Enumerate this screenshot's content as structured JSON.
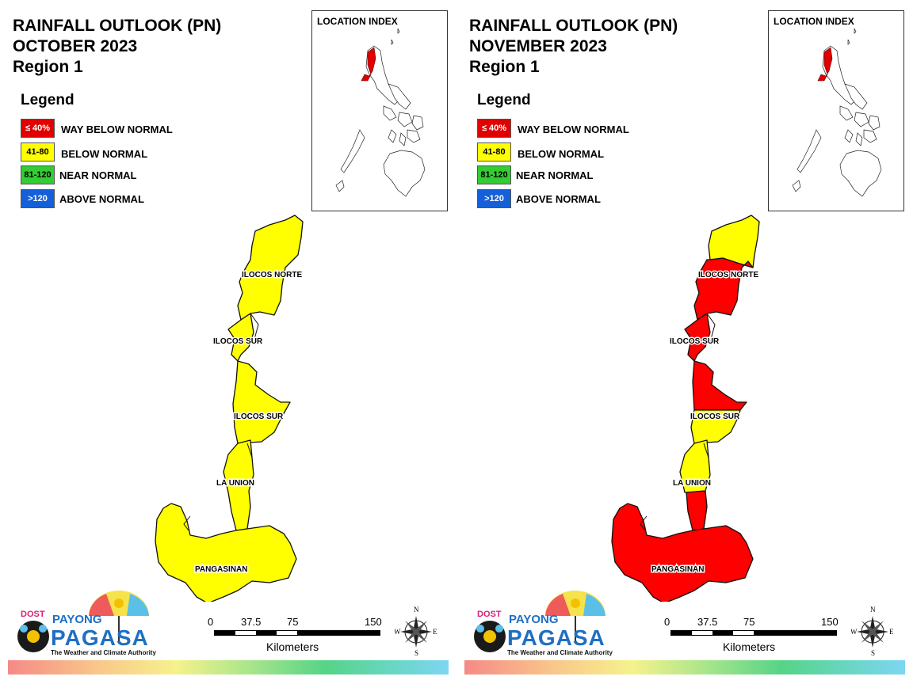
{
  "panels": [
    {
      "title_line1": "RAINFALL OUTLOOK (PN)",
      "title_line2": "OCTOBER 2023",
      "title_line3": "Region 1",
      "region_fill": "#ffff00",
      "province_fills": {
        "ilocos_norte_north": "#ffff00",
        "ilocos_norte_south": "#ffff00",
        "ilocos_sur_north": "#ffff00",
        "ilocos_sur_south": "#ffff00",
        "la_union_north": "#ffff00",
        "la_union_south": "#ffff00",
        "pangasinan": "#ffff00"
      }
    },
    {
      "title_line1": "RAINFALL OUTLOOK (PN)",
      "title_line2": "NOVEMBER 2023",
      "title_line3": "Region 1",
      "region_fill": "#ff0000",
      "province_fills": {
        "ilocos_norte_north": "#ffff00",
        "ilocos_norte_south": "#ff0000",
        "ilocos_sur_north": "#ff0000",
        "ilocos_sur_south": "#ffff00",
        "la_union_north": "#ffff00",
        "la_union_south": "#ff0000",
        "pangasinan": "#ff0000"
      }
    }
  ],
  "legend": {
    "title": "Legend",
    "items": [
      {
        "range": "≤ 40%",
        "label": "WAY BELOW NORMAL",
        "color": "#e00000",
        "text_color": "#ffffff"
      },
      {
        "range": "41-80",
        "label": "BELOW NORMAL",
        "color": "#ffff00",
        "text_color": "#000000"
      },
      {
        "range": "81-120",
        "label": "NEAR NORMAL",
        "color": "#33cc33",
        "text_color": "#000000"
      },
      {
        "range": ">120",
        "label": "ABOVE NORMAL",
        "color": "#1560d8",
        "text_color": "#ffffff"
      }
    ]
  },
  "location_index": {
    "title": "LOCATION INDEX"
  },
  "provinces": {
    "ilocos_norte": "ILOCOS NORTE",
    "ilocos_sur_1": "ILOCOS SUR",
    "ilocos_sur_2": "ILOCOS SUR",
    "la_union": "LA UNION",
    "pangasinan": "PANGASINAN"
  },
  "scale": {
    "ticks": [
      "0",
      "37.5",
      "75",
      "150"
    ],
    "unit": "Kilometers"
  },
  "compass": {
    "n": "N",
    "s": "S",
    "e": "E",
    "w": "W"
  },
  "logo": {
    "dost": "DOST",
    "payong": "PAYONG",
    "pagasa": "PAGASA",
    "tagline": "The Weather and Climate Authority"
  }
}
